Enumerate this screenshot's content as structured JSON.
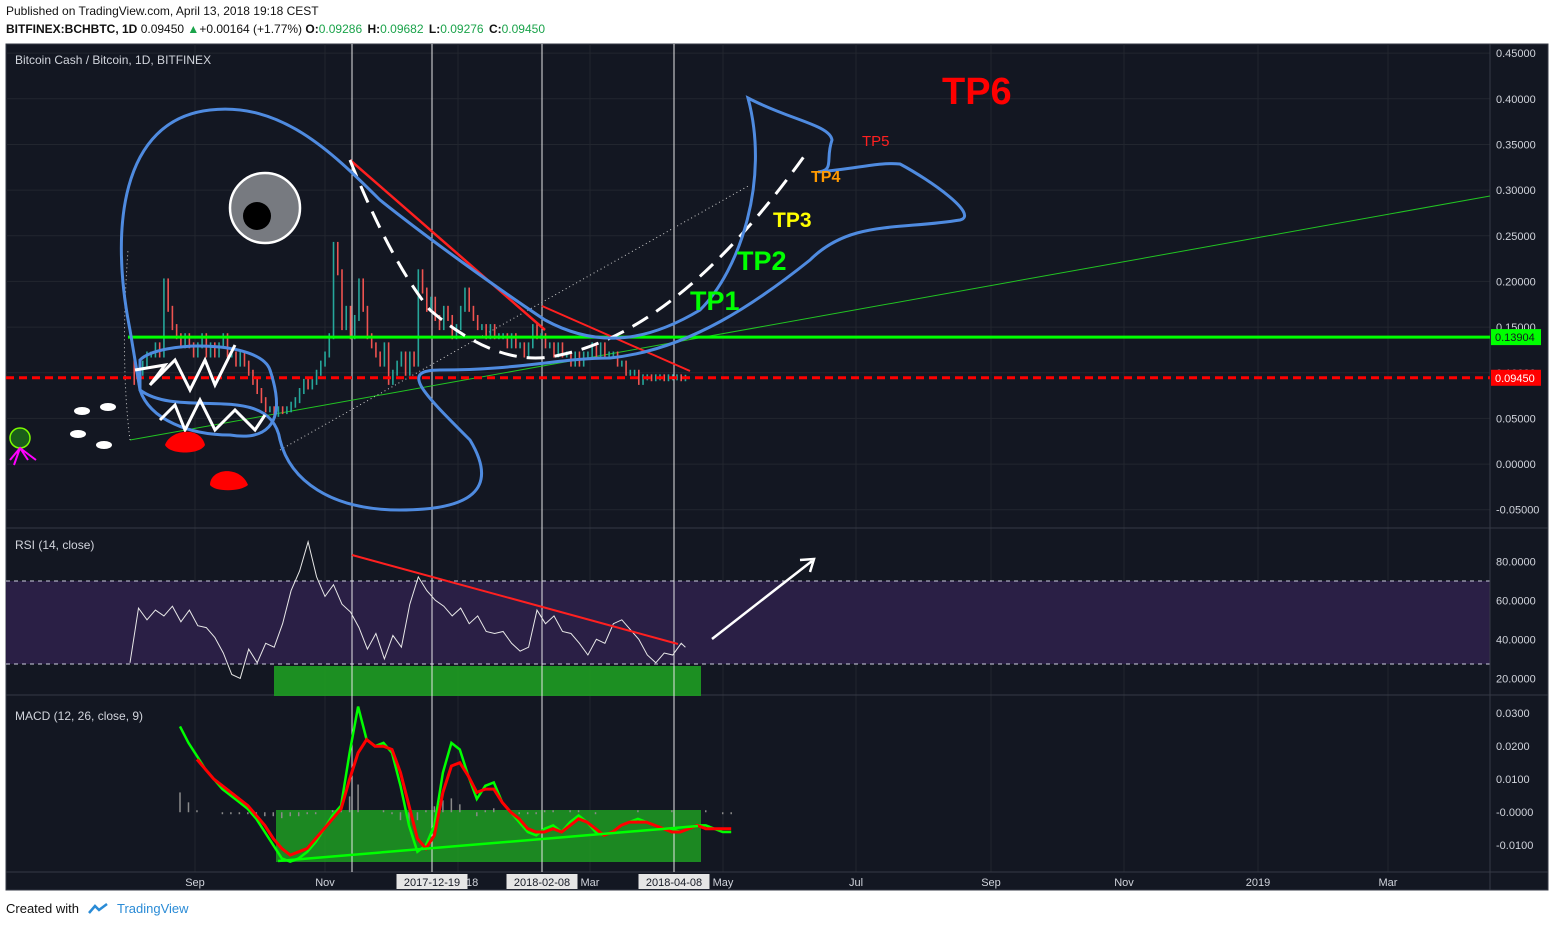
{
  "header": {
    "published": "Published on TradingView.com, April 13, 2018 19:18 CEST",
    "symbol": "BITFINEX:BCHBTC, 1D",
    "last": "0.09450",
    "change": "+0.00164 (+1.77%)",
    "o_label": "O:",
    "o": "0.09286",
    "h_label": "H:",
    "h": "0.09682",
    "l_label": "L:",
    "l": "0.09276",
    "c_label": "C:",
    "c": "0.09450"
  },
  "footer": {
    "created_with": "Created with",
    "brand": "TradingView"
  },
  "colors": {
    "background": "#131722",
    "rsi_band": "#2a1f45",
    "green": "#00ff00",
    "red": "#ff0000",
    "shark": "#4f8be0"
  },
  "chart_data": [
    {
      "type": "line",
      "title": "Bitcoin Cash / Bitcoin, 1D, BITFINEX",
      "y_ticks": [
        "0.45000",
        "0.40000",
        "0.35000",
        "0.30000",
        "0.25000",
        "0.20000",
        "0.15000",
        "0.10000",
        "0.05000",
        "0.00000",
        "-0.05000"
      ],
      "ylim": [
        -0.07,
        0.46
      ],
      "x_labels": [
        "Sep",
        "Nov",
        "2017-12-19",
        "2018-02-08",
        "Mar",
        "2018-04-08",
        "May",
        "Jul",
        "Sep",
        "Nov",
        "2019",
        "Mar"
      ],
      "hidden_label_fragment": "18",
      "series": [
        {
          "x": [
            0,
            2,
            4,
            6,
            8,
            10,
            12,
            14,
            16,
            18,
            20,
            22,
            24,
            26,
            28,
            30,
            32,
            34,
            36,
            38,
            40,
            42,
            44,
            46,
            48,
            50,
            52,
            54,
            56,
            58,
            60,
            62,
            64,
            66,
            68,
            70,
            72,
            74,
            76,
            78,
            80,
            82,
            84,
            86,
            88,
            90,
            92,
            94,
            96,
            98,
            100,
            102,
            104,
            106,
            108,
            110,
            112,
            114,
            116,
            118,
            120,
            122,
            124,
            126,
            128,
            130,
            132,
            134,
            136,
            138,
            140,
            142,
            144,
            146,
            148,
            150,
            152,
            154,
            156,
            158,
            160,
            162,
            164,
            166,
            168,
            170,
            172,
            174,
            176,
            178,
            180,
            182,
            184,
            186,
            188,
            190,
            192,
            194,
            196,
            198,
            200,
            202,
            204,
            206,
            208,
            210,
            212,
            214,
            216,
            218,
            220,
            222,
            224,
            226,
            228,
            230,
            232,
            234,
            236,
            238,
            240,
            242,
            244,
            246,
            248,
            250,
            252,
            254,
            256,
            258,
            260,
            262
          ],
          "y": [
            0.12,
            0.09,
            0.1,
            0.11,
            0.12,
            0.12,
            0.13,
            0.12,
            0.2,
            0.17,
            0.15,
            0.14,
            0.13,
            0.14,
            0.13,
            0.12,
            0.13,
            0.14,
            0.12,
            0.13,
            0.12,
            0.13,
            0.14,
            0.12,
            0.12,
            0.11,
            0.12,
            0.11,
            0.1,
            0.09,
            0.08,
            0.07,
            0.06,
            0.06,
            0.055,
            0.06,
            0.058,
            0.06,
            0.065,
            0.07,
            0.08,
            0.09,
            0.085,
            0.09,
            0.1,
            0.11,
            0.12,
            0.14,
            0.24,
            0.21,
            0.15,
            0.17,
            0.14,
            0.16,
            0.2,
            0.17,
            0.14,
            0.13,
            0.12,
            0.11,
            0.13,
            0.09,
            0.1,
            0.11,
            0.12,
            0.1,
            0.12,
            0.11,
            0.21,
            0.19,
            0.17,
            0.18,
            0.16,
            0.15,
            0.17,
            0.16,
            0.14,
            0.15,
            0.17,
            0.19,
            0.17,
            0.16,
            0.15,
            0.15,
            0.14,
            0.15,
            0.14,
            0.14,
            0.14,
            0.13,
            0.14,
            0.13,
            0.13,
            0.12,
            0.13,
            0.15,
            0.14,
            0.14,
            0.13,
            0.13,
            0.12,
            0.13,
            0.12,
            0.12,
            0.11,
            0.12,
            0.11,
            0.12,
            0.12,
            0.13,
            0.12,
            0.13,
            0.12,
            0.12,
            0.12,
            0.11,
            0.11,
            0.1,
            0.1,
            0.1,
            0.09,
            0.095,
            0.095,
            0.094,
            0.095,
            0.095,
            0.094,
            0.095,
            0.095,
            0.095,
            0.094,
            0.0945
          ]
        }
      ],
      "horizontal_lines": [
        {
          "value": 0.13904,
          "label": "0.13904",
          "color": "#00ff00",
          "style": "solid"
        },
        {
          "value": 0.0945,
          "label": "0.09450",
          "color": "#ff0000",
          "style": "dashed"
        }
      ],
      "annotations": [
        "TP1",
        "TP2",
        "TP3",
        "TP4",
        "TP5",
        "TP6"
      ]
    },
    {
      "type": "line",
      "title": "RSI (14, close)",
      "y_ticks": [
        "80.0000",
        "60.0000",
        "40.0000",
        "20.0000"
      ],
      "ylim": [
        12,
        95
      ],
      "bands": [
        70,
        30
      ],
      "series": [
        {
          "x": [
            0,
            4,
            8,
            12,
            16,
            20,
            24,
            28,
            32,
            36,
            40,
            44,
            48,
            52,
            56,
            60,
            64,
            68,
            72,
            76,
            80,
            84,
            88,
            92,
            96,
            100,
            104,
            108,
            112,
            116,
            120,
            124,
            128,
            132,
            136,
            140,
            144,
            148,
            152,
            156,
            160,
            164,
            168,
            172,
            176,
            180,
            184,
            188,
            192,
            196,
            200,
            204,
            208,
            212,
            216,
            220,
            224,
            228,
            232,
            236,
            240,
            244,
            248,
            252,
            256,
            260,
            262
          ],
          "y": [
            28,
            56,
            50,
            55,
            52,
            57,
            49,
            55,
            47,
            46,
            41,
            33,
            22,
            20,
            35,
            28,
            38,
            36,
            48,
            65,
            75,
            90,
            72,
            62,
            68,
            58,
            54,
            46,
            35,
            43,
            30,
            42,
            36,
            58,
            72,
            65,
            60,
            57,
            52,
            56,
            48,
            52,
            44,
            43,
            44,
            38,
            34,
            36,
            55,
            48,
            52,
            44,
            43,
            38,
            32,
            40,
            38,
            48,
            50,
            45,
            40,
            32,
            28,
            33,
            32,
            38,
            36
          ]
        }
      ]
    },
    {
      "type": "line",
      "title": "MACD (12, 26, close, 9)",
      "y_ticks": [
        "0.0300",
        "0.0200",
        "0.0100",
        "-0.0000",
        "-0.0100"
      ],
      "ylim": [
        -0.0175,
        0.034
      ],
      "series": [
        {
          "name": "",
          "x": [
            0,
            4,
            8,
            12,
            16,
            20,
            24,
            28,
            32,
            36,
            40,
            44,
            48,
            52,
            56,
            60,
            64,
            68,
            72,
            76,
            80,
            84,
            88,
            92,
            96,
            100,
            104,
            108,
            112,
            116,
            120,
            124,
            128,
            132,
            136,
            140,
            144,
            148,
            152,
            156,
            160,
            164,
            168,
            172,
            176,
            180,
            184,
            188,
            192,
            196,
            200,
            204,
            208,
            212,
            216,
            220,
            224,
            228,
            232,
            236,
            240,
            244,
            248,
            252,
            256,
            260
          ],
          "y": [
            0.026,
            0.021,
            0.017,
            0.013,
            0.01,
            0.007,
            0.005,
            0.003,
            0.001,
            -0.002,
            -0.006,
            -0.01,
            -0.014,
            -0.015,
            -0.014,
            -0.012,
            -0.009,
            -0.005,
            -0.001,
            0.002,
            0.018,
            0.032,
            0.022,
            0.02,
            0.021,
            0.018,
            0.008,
            -0.004,
            -0.012,
            -0.01,
            -0.004,
            0.012,
            0.021,
            0.019,
            0.011,
            0.004,
            0.008,
            0.009,
            0.003,
            0.0,
            -0.003,
            -0.006,
            -0.007,
            -0.005,
            -0.004,
            -0.006,
            -0.003,
            -0.001,
            -0.003,
            -0.006,
            -0.007,
            -0.006,
            -0.004,
            -0.003,
            -0.002,
            -0.003,
            -0.004,
            -0.005,
            -0.005,
            -0.006,
            -0.005,
            -0.004,
            -0.004,
            -0.005,
            -0.006,
            -0.006
          ]
        },
        {
          "name": "",
          "x": [
            8,
            12,
            16,
            20,
            24,
            28,
            32,
            36,
            40,
            44,
            48,
            52,
            56,
            60,
            64,
            68,
            72,
            76,
            80,
            84,
            88,
            92,
            96,
            100,
            104,
            108,
            112,
            116,
            120,
            124,
            128,
            132,
            136,
            140,
            144,
            148,
            152,
            156,
            160,
            164,
            168,
            172,
            176,
            180,
            184,
            188,
            192,
            196,
            200,
            204,
            208,
            212,
            216,
            220,
            224,
            228,
            232,
            236,
            240,
            244,
            248,
            252,
            256,
            260
          ],
          "y": [
            0.016,
            0.013,
            0.01,
            0.008,
            0.006,
            0.004,
            0.002,
            -0.001,
            -0.004,
            -0.008,
            -0.011,
            -0.013,
            -0.012,
            -0.011,
            -0.008,
            -0.005,
            -0.002,
            0.001,
            0.01,
            0.018,
            0.022,
            0.02,
            0.02,
            0.019,
            0.012,
            0.002,
            -0.008,
            -0.011,
            -0.007,
            0.006,
            0.014,
            0.015,
            0.011,
            0.006,
            0.007,
            0.007,
            0.003,
            0.0,
            -0.002,
            -0.005,
            -0.006,
            -0.006,
            -0.005,
            -0.006,
            -0.004,
            -0.002,
            -0.003,
            -0.005,
            -0.007,
            -0.006,
            -0.004,
            -0.003,
            -0.003,
            -0.003,
            -0.004,
            -0.005,
            -0.006,
            -0.006,
            -0.005,
            -0.004,
            -0.005,
            -0.005,
            -0.005,
            -0.005
          ]
        }
      ]
    }
  ]
}
